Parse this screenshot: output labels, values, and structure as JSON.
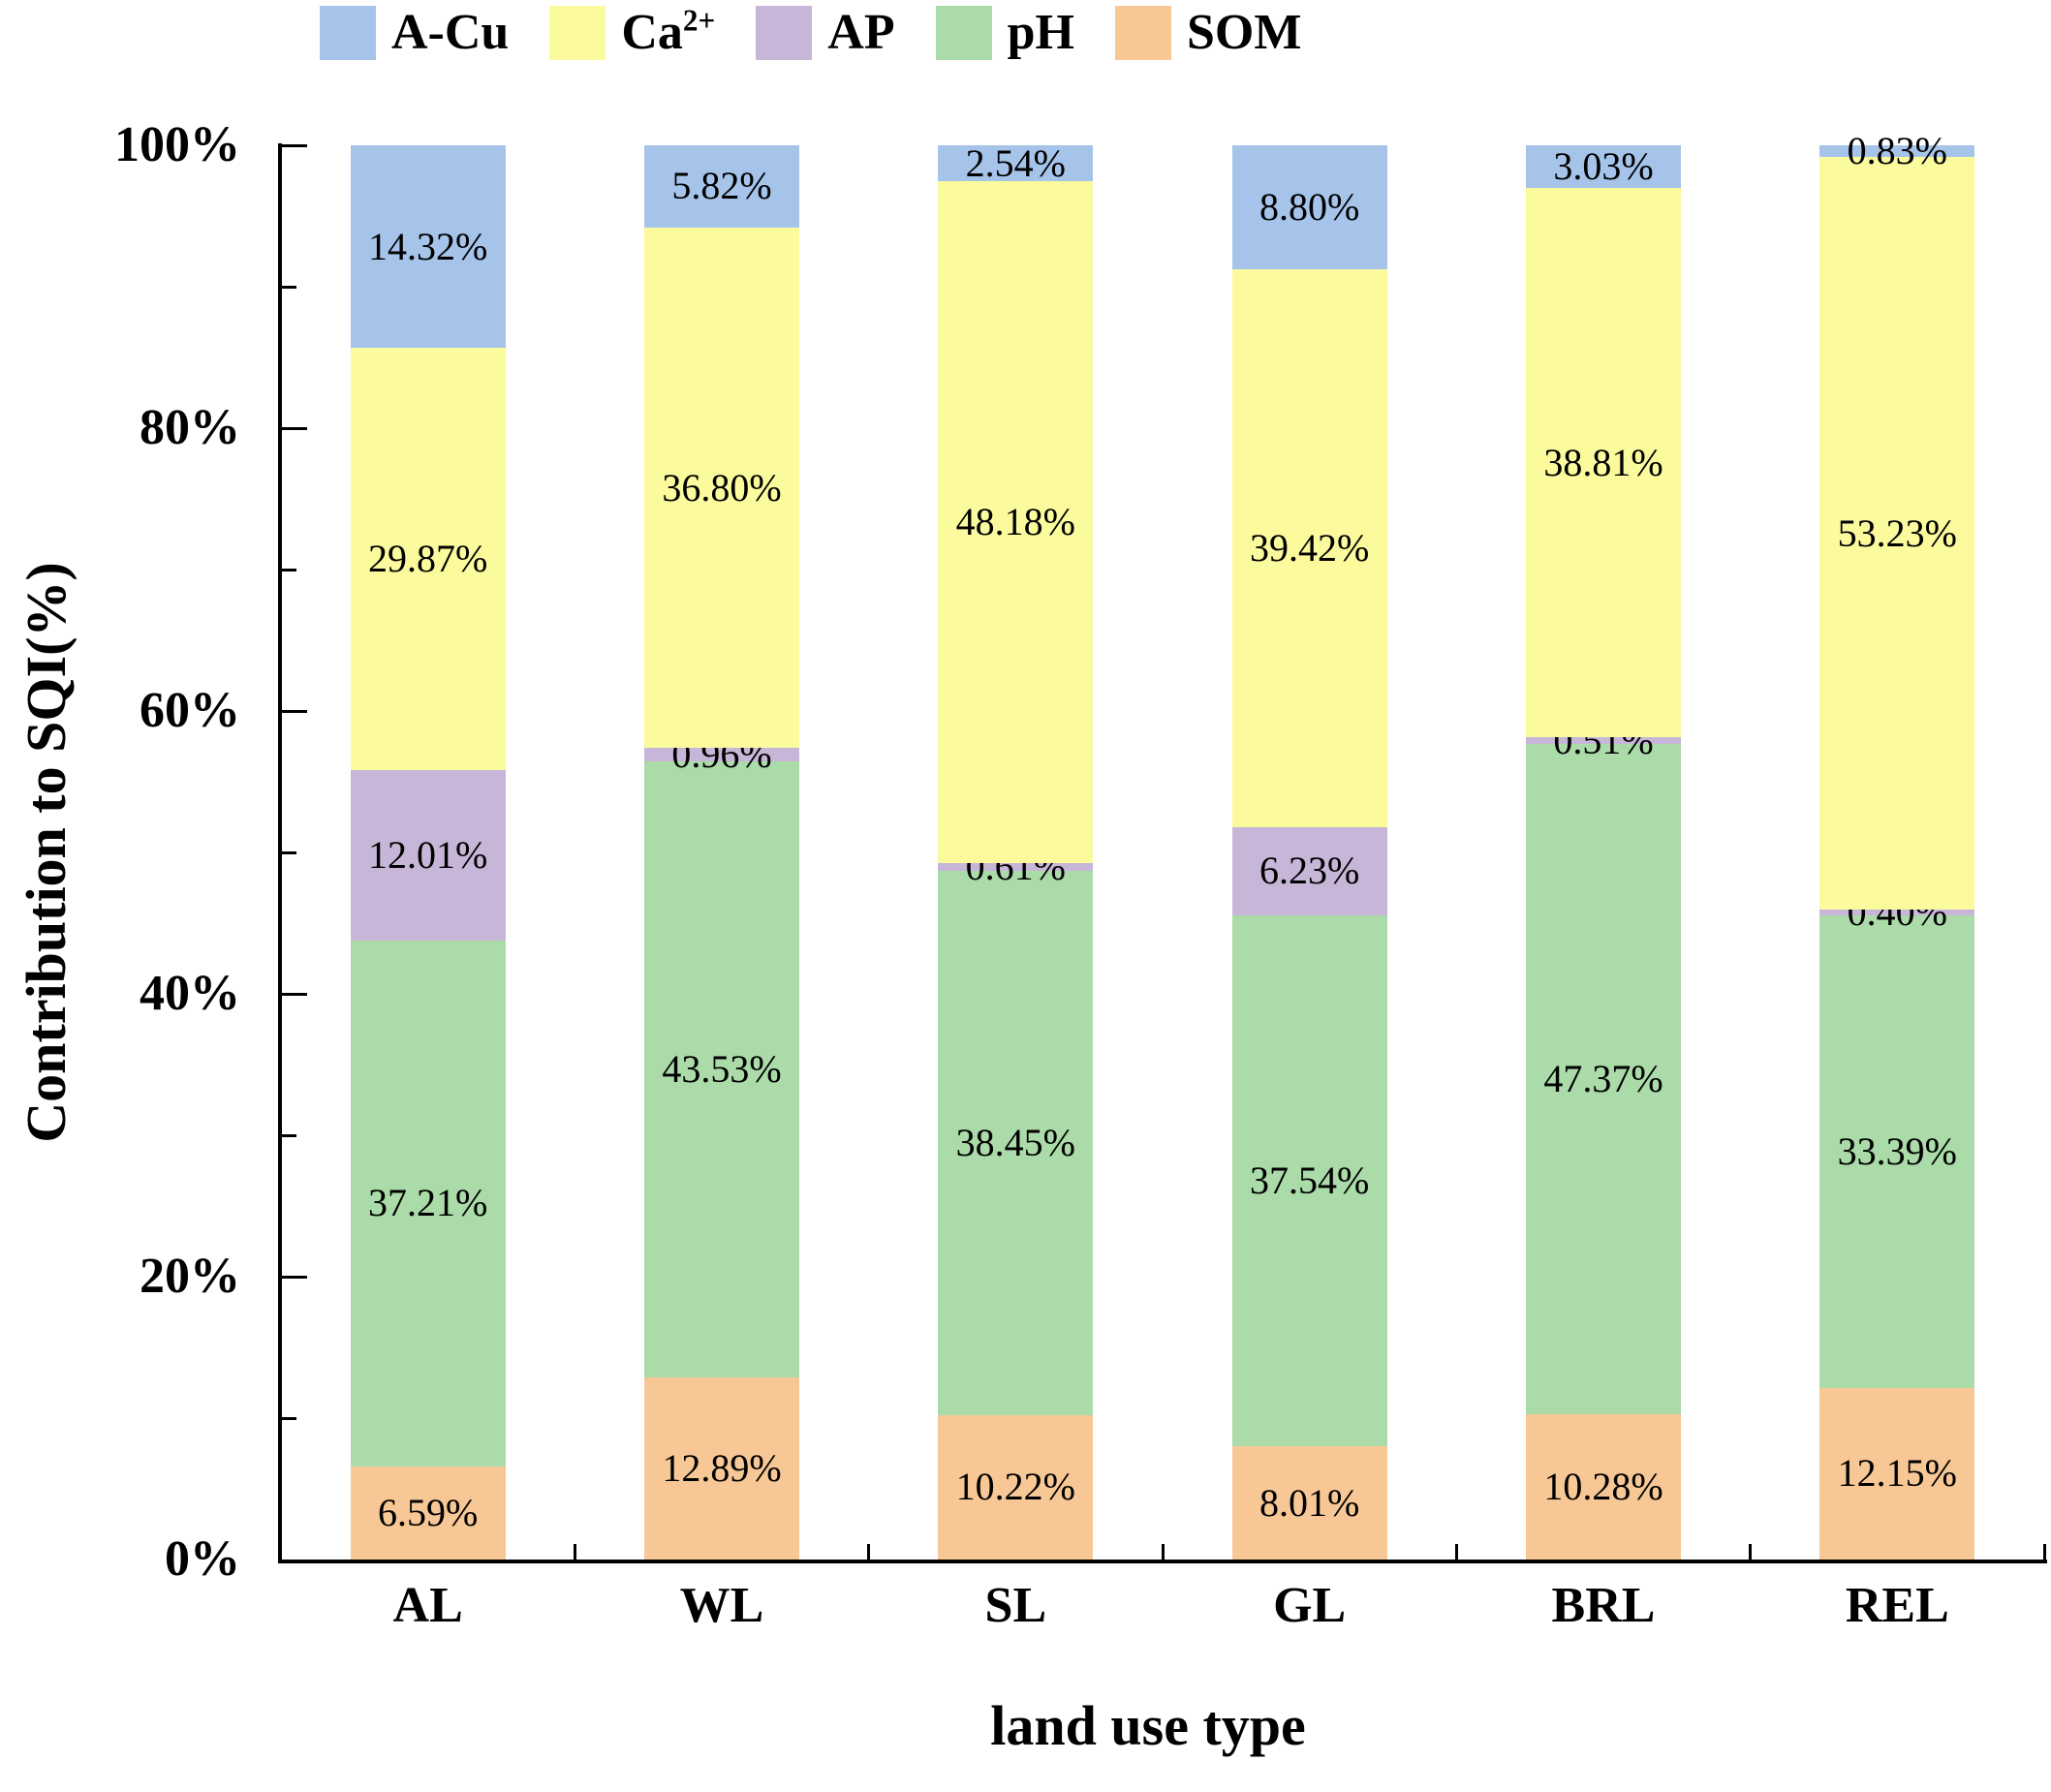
{
  "chart_data": {
    "type": "bar",
    "stacked": true,
    "title": "",
    "xlabel": "land use type",
    "ylabel": "Contribution to SQI(%)",
    "ylim": [
      0,
      100
    ],
    "grid": false,
    "legend_position": "top",
    "categories": [
      "AL",
      "WL",
      "SL",
      "GL",
      "BRL",
      "REL"
    ],
    "series": [
      {
        "name": "SOM",
        "color": "#f7c795",
        "values": [
          6.59,
          12.89,
          10.22,
          8.01,
          10.28,
          12.15
        ]
      },
      {
        "name": "pH",
        "color": "#aadba8",
        "values": [
          37.21,
          43.53,
          38.45,
          37.54,
          47.37,
          33.39
        ]
      },
      {
        "name": "AP",
        "color": "#c8b6d9",
        "values": [
          12.01,
          0.96,
          0.61,
          6.23,
          0.51,
          0.4
        ]
      },
      {
        "name": "Ca2+",
        "color": "#fbfa9d",
        "values": [
          29.87,
          36.8,
          48.18,
          39.42,
          38.81,
          53.23
        ]
      },
      {
        "name": "A-Cu",
        "color": "#a6c3ea",
        "values": [
          14.32,
          5.82,
          2.54,
          8.8,
          3.03,
          0.83
        ]
      }
    ],
    "legend": [
      {
        "series": "A-Cu",
        "label": "A-Cu",
        "superscript": ""
      },
      {
        "series": "Ca2+",
        "label": "Ca",
        "superscript": "2+"
      },
      {
        "series": "AP",
        "label": "AP",
        "superscript": ""
      },
      {
        "series": "pH",
        "label": "pH",
        "superscript": ""
      },
      {
        "series": "SOM",
        "label": "SOM",
        "superscript": ""
      }
    ],
    "y_tick_labels": [
      "0%",
      "20%",
      "40%",
      "60%",
      "80%",
      "100%"
    ],
    "y_major_step": 20,
    "y_minor_step": 10,
    "value_label_suffix": "%",
    "value_label_decimals": 2
  }
}
